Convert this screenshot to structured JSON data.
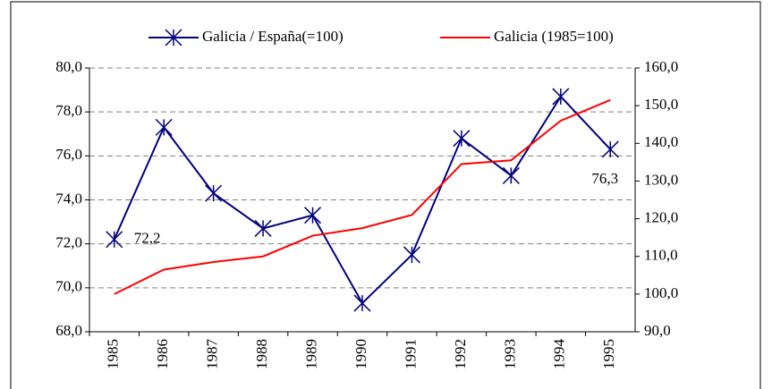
{
  "chart_data": {
    "type": "line",
    "categories": [
      "1985",
      "1986",
      "1987",
      "1988",
      "1989",
      "1990",
      "1991",
      "1992",
      "1993",
      "1994",
      "1995"
    ],
    "series": [
      {
        "name": "Galicia / España(=100)",
        "color": "#000080",
        "marker": "asterisk",
        "values": [
          72.2,
          77.3,
          74.3,
          72.7,
          73.3,
          69.3,
          71.5,
          76.8,
          75.1,
          78.7,
          76.3
        ],
        "value_labels": [
          "72,2",
          null,
          null,
          null,
          null,
          null,
          null,
          null,
          null,
          null,
          "76,3"
        ]
      },
      {
        "name": "Galicia (1985=100)",
        "color": "#ff0000",
        "axis": "y2",
        "values": [
          100,
          106.5,
          108.5,
          110,
          115.5,
          117.5,
          121,
          134.5,
          135.5,
          146,
          151.5
        ]
      }
    ],
    "ylim": [
      68,
      80
    ],
    "yticks": [
      {
        "value": 68,
        "label": "68,0"
      },
      {
        "value": 70,
        "label": "70,0"
      },
      {
        "value": 72,
        "label": "72,0"
      },
      {
        "value": 74,
        "label": "74,0"
      },
      {
        "value": 76,
        "label": "76,0"
      },
      {
        "value": 78,
        "label": "78,0"
      },
      {
        "value": 80,
        "label": "80,0"
      }
    ],
    "y2lim": [
      90,
      160
    ],
    "y2ticks": [
      {
        "value": 90,
        "label": "90,0"
      },
      {
        "value": 100,
        "label": "100,0"
      },
      {
        "value": 110,
        "label": "110,0"
      },
      {
        "value": 120,
        "label": "120,0"
      },
      {
        "value": 130,
        "label": "130,0"
      },
      {
        "value": 140,
        "label": "140,0"
      },
      {
        "value": 150,
        "label": "150,0"
      },
      {
        "value": 160,
        "label": "160,0"
      }
    ],
    "grid": true,
    "legend": "top"
  }
}
